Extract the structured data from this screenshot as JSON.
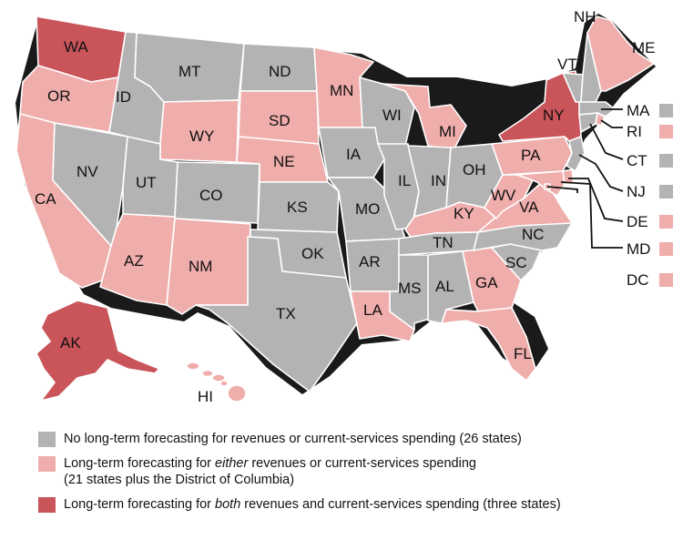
{
  "colors": {
    "none": "#b3b3b3",
    "either": "#efadab",
    "both": "#c9545a",
    "outline": "#1a1a1a"
  },
  "states": {
    "WA": "both",
    "OR": "either",
    "CA": "either",
    "NV": "none",
    "ID": "none",
    "MT": "none",
    "WY": "either",
    "UT": "none",
    "AZ": "either",
    "CO": "none",
    "NM": "either",
    "ND": "none",
    "SD": "either",
    "NE": "either",
    "KS": "none",
    "OK": "none",
    "TX": "none",
    "MN": "either",
    "IA": "none",
    "MO": "none",
    "AR": "none",
    "LA": "either",
    "WI": "none",
    "IL": "none",
    "MI": "either",
    "IN": "none",
    "OH": "none",
    "KY": "either",
    "TN": "none",
    "MS": "none",
    "AL": "none",
    "GA": "either",
    "FL": "either",
    "SC": "none",
    "NC": "none",
    "VA": "either",
    "WV": "either",
    "PA": "either",
    "NY": "both",
    "VT": "none",
    "NH": "none",
    "ME": "either",
    "MA": "none",
    "RI": "either",
    "CT": "none",
    "NJ": "none",
    "DE": "either",
    "MD": "either",
    "DC": "either",
    "AK": "both",
    "HI": "either"
  },
  "callouts": [
    {
      "label": "MA",
      "category": "none"
    },
    {
      "label": "RI",
      "category": "either"
    },
    {
      "label": "CT",
      "category": "none"
    },
    {
      "label": "NJ",
      "category": "none"
    },
    {
      "label": "DE",
      "category": "either"
    },
    {
      "label": "MD",
      "category": "either"
    },
    {
      "label": "DC",
      "category": "either"
    }
  ],
  "legend": {
    "none": "No long-term forecasting for revenues or current-services spending (26 states)",
    "either_pre": "Long-term forecasting for ",
    "either_em": "either",
    "either_post": " revenues or current-services spending",
    "either_line2": "(21 states plus the District of Columbia)",
    "both_pre": "Long-term forecasting for ",
    "both_em": "both",
    "both_post": " revenues and current-services spending (three states)"
  }
}
